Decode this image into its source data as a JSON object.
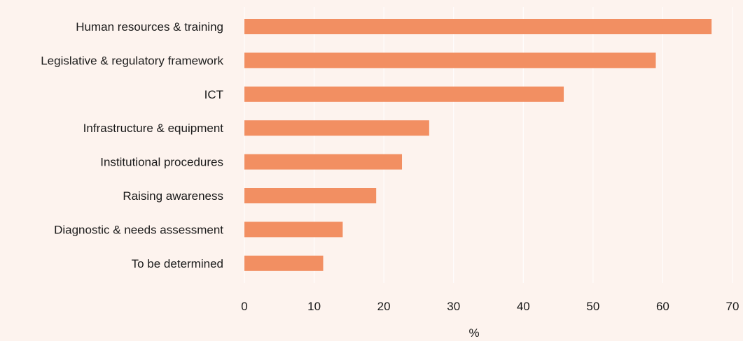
{
  "colors": {
    "background": "#fdf3ee",
    "bar": "#f28f62",
    "gridline": "#ffffff",
    "text": "#1a1a1a"
  },
  "chart_data": {
    "type": "bar",
    "orientation": "horizontal",
    "title": "",
    "xlabel": "%",
    "ylabel": "",
    "categories": [
      "Human resources & training",
      "Legislative & regulatory framework",
      "ICT",
      "Infrastructure & equipment",
      "Institutional procedures",
      "Raising awareness",
      "Diagnostic & needs assessment",
      "To be determined"
    ],
    "values": [
      67,
      59,
      45.8,
      26.5,
      22.6,
      18.9,
      14.1,
      11.3
    ],
    "xlim": [
      0,
      70
    ],
    "xticks": [
      0,
      10,
      20,
      30,
      40,
      50,
      60,
      70
    ],
    "grid": "vertical",
    "legend": "none"
  }
}
